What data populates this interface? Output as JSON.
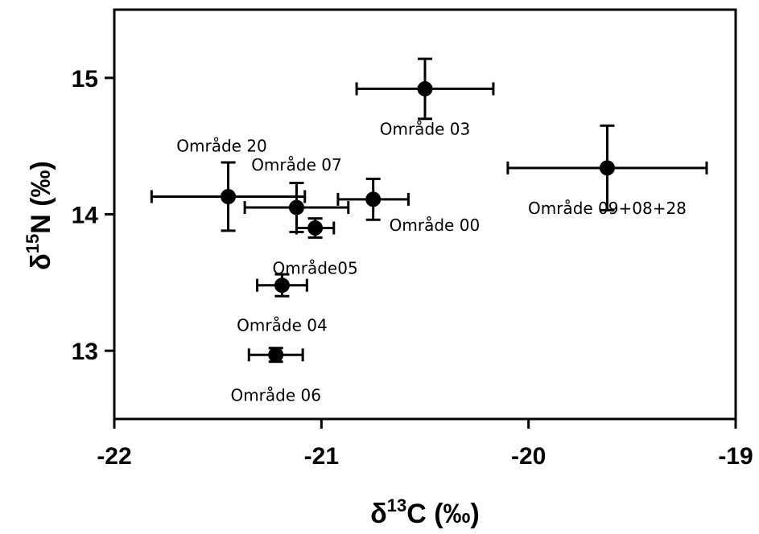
{
  "chart_data": {
    "type": "scatter",
    "title": "",
    "xlabel": {
      "prefix": "δ",
      "sup": "13",
      "suffix": "C (‰)"
    },
    "ylabel": {
      "prefix": "δ",
      "sup": "15",
      "suffix": "N (‰)"
    },
    "xlim": [
      -22,
      -19
    ],
    "ylim": [
      12.5,
      15.5
    ],
    "xticks": [
      -22,
      -21,
      -20,
      -19
    ],
    "xtick_labels": [
      "-22",
      "-21",
      "-20",
      "-19"
    ],
    "yticks": [
      13,
      14,
      15
    ],
    "ytick_labels": [
      "13",
      "14",
      "15"
    ],
    "grid": false,
    "legend": "none",
    "points": [
      {
        "label": "Område 03",
        "x": -20.5,
        "y": 14.92,
        "xerr": 0.33,
        "yerr": 0.22,
        "label_pos": "below"
      },
      {
        "label": "Område 09+08+28",
        "x": -19.62,
        "y": 14.34,
        "xerr": 0.48,
        "yerr": 0.31,
        "label_pos": "below"
      },
      {
        "label": "Område 20",
        "x": -21.45,
        "y": 14.13,
        "xerr": 0.37,
        "yerr": 0.25,
        "label_pos": "above-left"
      },
      {
        "label": "Område 07",
        "x": -21.12,
        "y": 14.05,
        "xerr": 0.25,
        "yerr": 0.18,
        "label_pos": "above"
      },
      {
        "label": "Område 00",
        "x": -20.75,
        "y": 14.11,
        "xerr": 0.17,
        "yerr": 0.15,
        "label_pos": "below-right"
      },
      {
        "label": "Område05",
        "x": -21.03,
        "y": 13.9,
        "xerr": 0.09,
        "yerr": 0.07,
        "label_pos": "below"
      },
      {
        "label": "Område 04",
        "x": -21.19,
        "y": 13.48,
        "xerr": 0.12,
        "yerr": 0.08,
        "label_pos": "below"
      },
      {
        "label": "Område 06",
        "x": -21.22,
        "y": 12.97,
        "xerr": 0.13,
        "yerr": 0.05,
        "label_pos": "below"
      }
    ],
    "colors": {
      "marker": "#000000",
      "axis": "#000000",
      "background": "#ffffff"
    }
  }
}
